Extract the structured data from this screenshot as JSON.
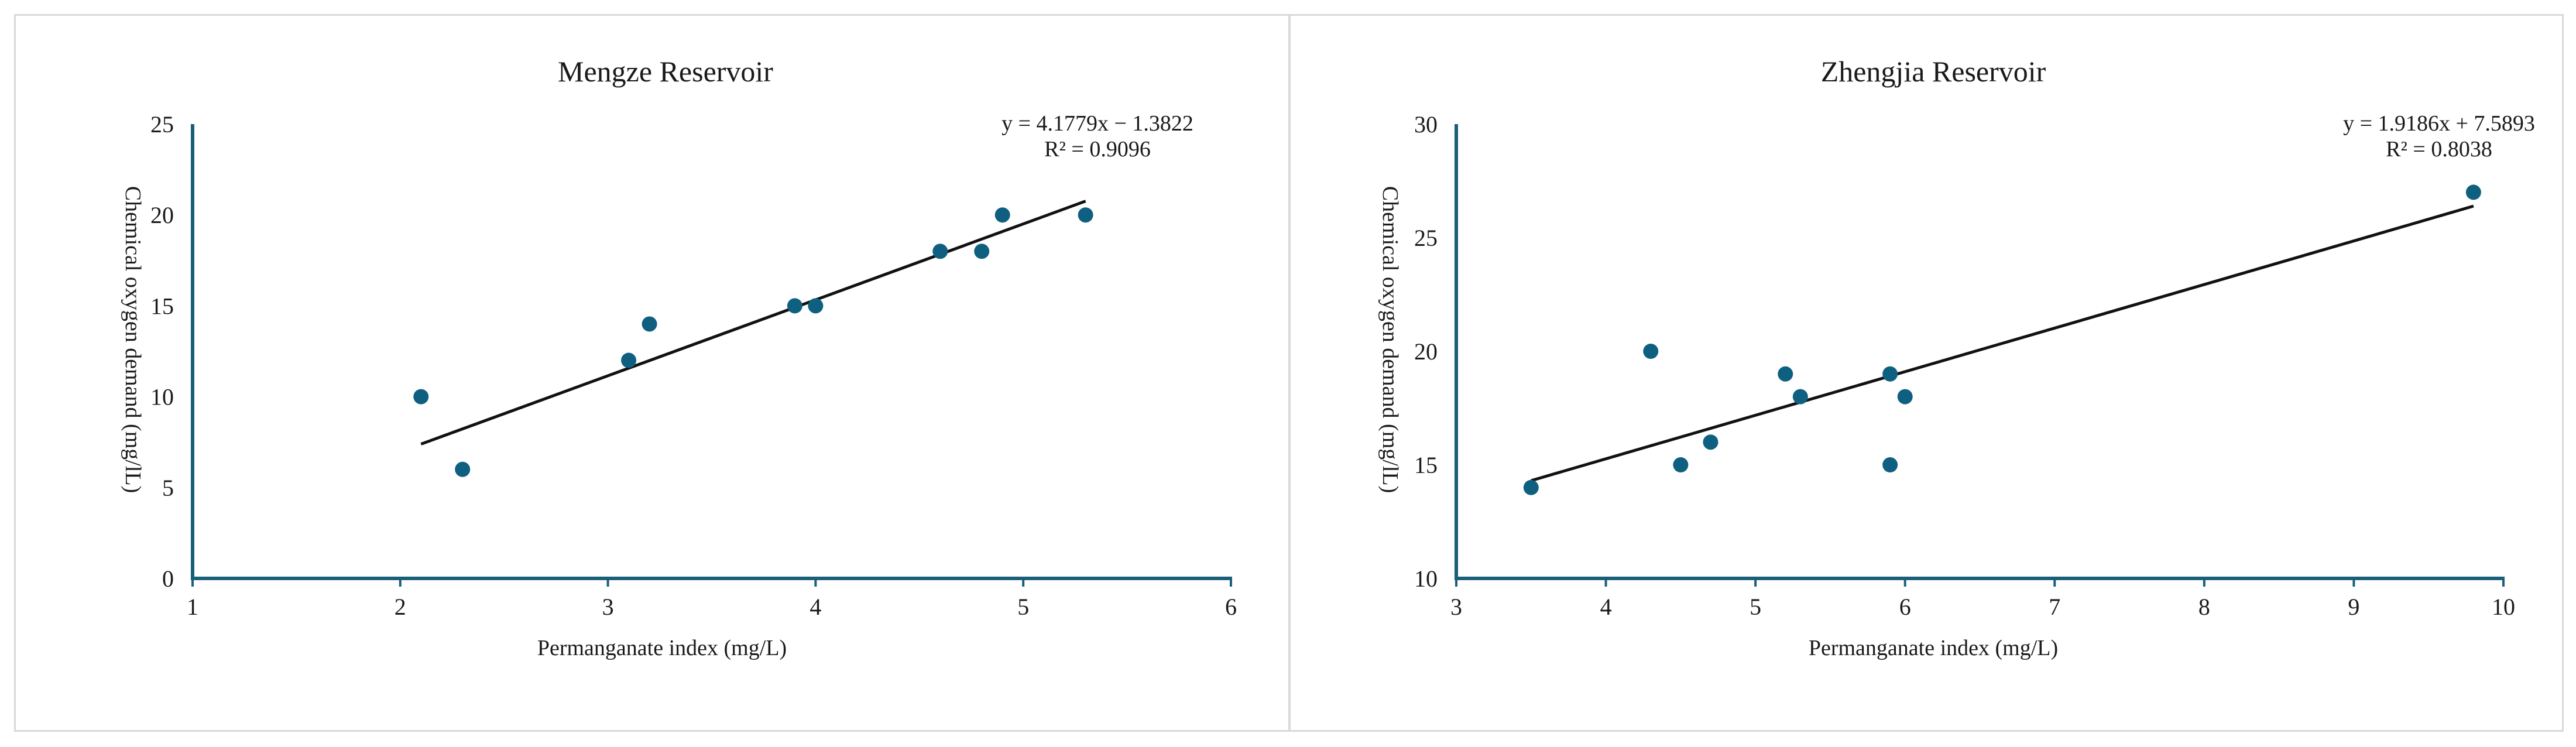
{
  "chart_data": [
    {
      "type": "scatter",
      "title": "Mengze Reservoir",
      "xlabel": "Permanganate index (mg/L)",
      "ylabel": "Chemical oxygen demand (mg/lL)",
      "xlim": [
        1,
        6
      ],
      "ylim": [
        0,
        25
      ],
      "xticks": [
        1,
        2,
        3,
        4,
        5,
        6
      ],
      "yticks": [
        0,
        5,
        10,
        15,
        20,
        25
      ],
      "grid": false,
      "marker_color": "#0f6080",
      "axis_color": "#1a5f7a",
      "points": [
        {
          "x": 2.1,
          "y": 10
        },
        {
          "x": 2.3,
          "y": 6
        },
        {
          "x": 3.1,
          "y": 12
        },
        {
          "x": 3.2,
          "y": 14
        },
        {
          "x": 3.9,
          "y": 15
        },
        {
          "x": 4.0,
          "y": 15
        },
        {
          "x": 4.6,
          "y": 18
        },
        {
          "x": 4.8,
          "y": 18
        },
        {
          "x": 4.9,
          "y": 20
        },
        {
          "x": 5.3,
          "y": 20
        }
      ],
      "trendline": {
        "slope": 4.1779,
        "intercept": -1.3822,
        "x_range": [
          2.1,
          5.3
        ],
        "equation": "y = 4.1779x − 1.3822",
        "r2": "R² = 0.9096"
      }
    },
    {
      "type": "scatter",
      "title": "Zhengjia Reservoir",
      "xlabel": "Permanganate index (mg/L)",
      "ylabel": "Chemical oxygen demand (mg/lL)",
      "xlim": [
        3,
        10
      ],
      "ylim": [
        10,
        30
      ],
      "xticks": [
        3,
        4,
        5,
        6,
        7,
        8,
        9,
        10
      ],
      "yticks": [
        10,
        15,
        20,
        25,
        30
      ],
      "grid": false,
      "marker_color": "#0f6080",
      "axis_color": "#1a5f7a",
      "points": [
        {
          "x": 3.5,
          "y": 14
        },
        {
          "x": 4.3,
          "y": 20
        },
        {
          "x": 4.5,
          "y": 15
        },
        {
          "x": 4.7,
          "y": 16
        },
        {
          "x": 5.2,
          "y": 19
        },
        {
          "x": 5.3,
          "y": 18
        },
        {
          "x": 5.9,
          "y": 19
        },
        {
          "x": 5.9,
          "y": 15
        },
        {
          "x": 6.0,
          "y": 18
        },
        {
          "x": 9.8,
          "y": 27
        }
      ],
      "trendline": {
        "slope": 1.9186,
        "intercept": 7.5893,
        "x_range": [
          3.5,
          9.8
        ],
        "equation": "y = 1.9186x + 7.5893",
        "r2": "R² = 0.8038"
      }
    }
  ]
}
